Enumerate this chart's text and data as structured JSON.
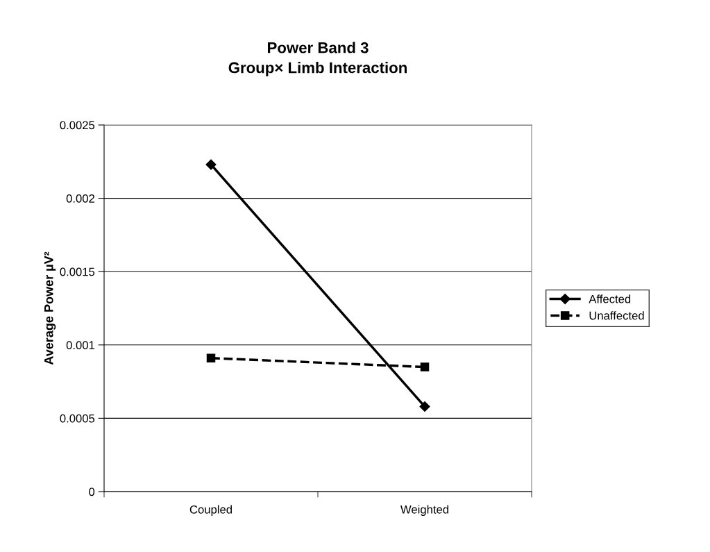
{
  "chart_data": {
    "type": "line",
    "title": "Power Band 3\nGroup× Limb Interaction",
    "ylabel": "Average Power µV²",
    "categories": [
      "Coupled",
      "Weighted"
    ],
    "series": [
      {
        "name": "Affected",
        "color": "#000000",
        "values": [
          0.00223,
          0.00058
        ],
        "marker": "diamond",
        "line_style": "solid"
      },
      {
        "name": "Unaffected",
        "color": "#000000",
        "values": [
          0.00091,
          0.00085
        ],
        "marker": "square",
        "line_style": "dashed"
      }
    ],
    "ylim": [
      0,
      0.0025
    ],
    "yticks": [
      0,
      0.0005,
      0.001,
      0.0015,
      0.002,
      0.0025
    ],
    "grid": "y",
    "legend": "right"
  }
}
